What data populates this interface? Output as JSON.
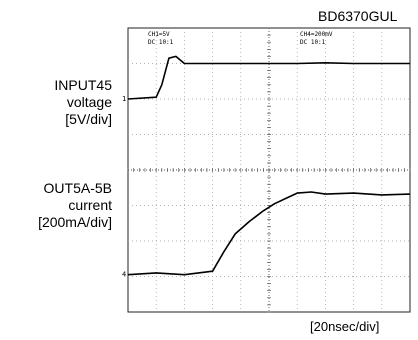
{
  "part_number": "BD6370GUL",
  "channel1": {
    "label_lines": [
      "INPUT45",
      "voltage",
      "[5V/div]"
    ],
    "setting": "CH1=5V",
    "coupling": "DC 10:1",
    "marker": "1"
  },
  "channel2": {
    "label_lines": [
      "OUT5A-5B",
      "current",
      "[200mA/div]"
    ],
    "setting": "CH4=200mV",
    "coupling": "DC 10:1",
    "marker": "4"
  },
  "timebase": "[20nsec/div]",
  "chart_data": {
    "type": "line",
    "grid": true,
    "divisions": {
      "x": 10,
      "y": 8
    },
    "xlim": [
      0,
      10
    ],
    "series": [
      {
        "name": "INPUT45 voltage",
        "units": "div",
        "x": [
          0,
          1.0,
          1.2,
          1.45,
          1.7,
          2.0,
          2.4,
          3.0,
          4,
          5,
          6,
          7,
          8,
          9,
          10
        ],
        "y": [
          6.0,
          6.05,
          6.4,
          7.15,
          7.2,
          7.0,
          7.0,
          7.0,
          7.0,
          7.0,
          7.0,
          7.02,
          7.0,
          7.0,
          7.0
        ],
        "ylim": [
          0,
          8
        ]
      },
      {
        "name": "OUT5A-5B current",
        "units": "div",
        "x": [
          0,
          1.0,
          2.0,
          2.5,
          3.0,
          3.4,
          3.8,
          4.3,
          4.8,
          5.2,
          5.6,
          6.0,
          6.5,
          7.0,
          8.0,
          9.0,
          10
        ],
        "y": [
          1.05,
          1.1,
          1.05,
          1.1,
          1.15,
          1.7,
          2.2,
          2.55,
          2.85,
          3.05,
          3.2,
          3.35,
          3.38,
          3.32,
          3.35,
          3.3,
          3.32
        ],
        "ylim": [
          0,
          8
        ]
      }
    ]
  }
}
